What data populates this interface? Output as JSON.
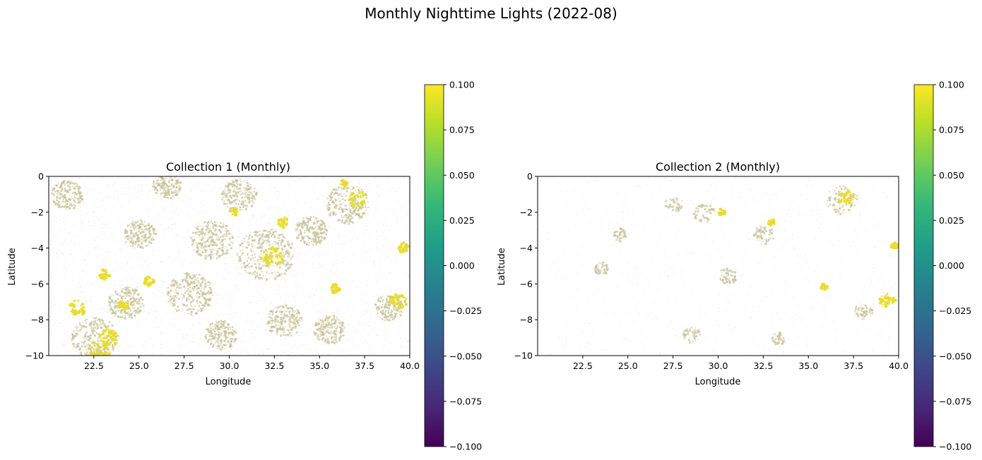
{
  "figure": {
    "title": "Monthly Nighttime Lights (2022-08)"
  },
  "colors": {
    "dim": "#c8c49a",
    "bright": "#e9dc30",
    "faint": "#dcdcdc",
    "viridis": [
      "#440154",
      "#482878",
      "#3e4989",
      "#31688e",
      "#26828e",
      "#1f9e89",
      "#35b779",
      "#6ece58",
      "#b5de2b",
      "#fde725"
    ]
  },
  "chart_data": [
    {
      "type": "heatmap",
      "title": "Collection 1 (Monthly)",
      "xlabel": "Longitude",
      "ylabel": "Latitude",
      "xlim": [
        20.0,
        40.0
      ],
      "ylim": [
        -10,
        0
      ],
      "xticks": [
        "22.5",
        "25.0",
        "27.5",
        "30.0",
        "32.5",
        "35.0",
        "37.5",
        "40.0"
      ],
      "xtick_values": [
        22.5,
        25.0,
        27.5,
        30.0,
        32.5,
        35.0,
        37.5,
        40.0
      ],
      "yticks": [
        "0",
        "−2",
        "−4",
        "−6",
        "−8",
        "−10"
      ],
      "ytick_values": [
        0,
        -2,
        -4,
        -6,
        -8,
        -10
      ],
      "colorbar": {
        "vmin": -0.1,
        "vmax": 0.1,
        "ticks": [
          "0.100",
          "0.075",
          "0.050",
          "0.025",
          "0.000",
          "−0.025",
          "−0.050",
          "−0.075",
          "−0.100"
        ],
        "tick_values": [
          0.1,
          0.075,
          0.05,
          0.025,
          0.0,
          -0.025,
          -0.05,
          -0.075,
          -0.1
        ]
      },
      "bright_clusters": [
        [
          37.1,
          -1.2,
          0.5
        ],
        [
          32.9,
          -2.5,
          0.3
        ],
        [
          30.2,
          -1.9,
          0.25
        ],
        [
          39.3,
          -6.9,
          0.5
        ],
        [
          35.8,
          -6.2,
          0.3
        ],
        [
          39.6,
          -3.9,
          0.3
        ],
        [
          23.3,
          -8.9,
          0.55
        ],
        [
          21.5,
          -7.3,
          0.5
        ],
        [
          24.1,
          -7.2,
          0.35
        ],
        [
          32.3,
          -4.4,
          0.6
        ],
        [
          22.8,
          -9.6,
          0.6
        ],
        [
          25.5,
          -5.8,
          0.3
        ],
        [
          23.0,
          -5.4,
          0.3
        ],
        [
          36.3,
          -0.3,
          0.2
        ]
      ],
      "dim_clusters": [
        [
          32.0,
          -4.3,
          1.6
        ],
        [
          29.0,
          -3.5,
          1.2
        ],
        [
          27.8,
          -6.5,
          1.3
        ],
        [
          22.5,
          -9.0,
          1.3
        ],
        [
          24.2,
          -7.0,
          1.0
        ],
        [
          36.5,
          -1.5,
          1.2
        ],
        [
          30.5,
          -1.0,
          1.0
        ],
        [
          21.0,
          -1.0,
          0.9
        ],
        [
          38.8,
          -7.3,
          0.8
        ],
        [
          34.5,
          -3.0,
          0.9
        ],
        [
          25.0,
          -3.2,
          0.9
        ],
        [
          33.0,
          -8.0,
          1.0
        ],
        [
          26.5,
          -0.5,
          0.8
        ],
        [
          35.5,
          -8.5,
          0.9
        ],
        [
          29.5,
          -8.8,
          0.9
        ]
      ],
      "density": 1.0
    },
    {
      "type": "heatmap",
      "title": "Collection 2 (Monthly)",
      "xlabel": "Longitude",
      "ylabel": "Latitude",
      "xlim": [
        20.0,
        40.0
      ],
      "ylim": [
        -10,
        0
      ],
      "xticks": [
        "22.5",
        "25.0",
        "27.5",
        "30.0",
        "32.5",
        "35.0",
        "37.5",
        "40.0"
      ],
      "xtick_values": [
        22.5,
        25.0,
        27.5,
        30.0,
        32.5,
        35.0,
        37.5,
        40.0
      ],
      "yticks": [
        "0",
        "−2",
        "−4",
        "−6",
        "−8",
        "−10"
      ],
      "ytick_values": [
        0,
        -2,
        -4,
        -6,
        -8,
        -10
      ],
      "colorbar": {
        "vmin": -0.1,
        "vmax": 0.1,
        "ticks": [
          "0.100",
          "0.075",
          "0.050",
          "0.025",
          "0.000",
          "−0.025",
          "−0.050",
          "−0.075",
          "−0.100"
        ],
        "tick_values": [
          0.1,
          0.075,
          0.05,
          0.025,
          0.0,
          -0.025,
          -0.05,
          -0.075,
          -0.1
        ]
      },
      "bright_clusters": [
        [
          37.0,
          -1.1,
          0.45
        ],
        [
          39.3,
          -6.9,
          0.45
        ],
        [
          30.1,
          -1.9,
          0.2
        ],
        [
          32.9,
          -2.5,
          0.2
        ],
        [
          35.8,
          -6.1,
          0.2
        ],
        [
          39.7,
          -3.8,
          0.2
        ]
      ],
      "dim_clusters": [
        [
          36.8,
          -1.3,
          0.9
        ],
        [
          29.2,
          -2.0,
          0.6
        ],
        [
          32.5,
          -3.2,
          0.6
        ],
        [
          27.5,
          -1.5,
          0.5
        ],
        [
          24.5,
          -3.2,
          0.4
        ],
        [
          23.5,
          -5.1,
          0.4
        ],
        [
          30.5,
          -5.5,
          0.5
        ],
        [
          28.5,
          -8.8,
          0.5
        ],
        [
          38.0,
          -7.5,
          0.5
        ],
        [
          33.3,
          -9.0,
          0.4
        ]
      ],
      "density": 0.35
    }
  ]
}
